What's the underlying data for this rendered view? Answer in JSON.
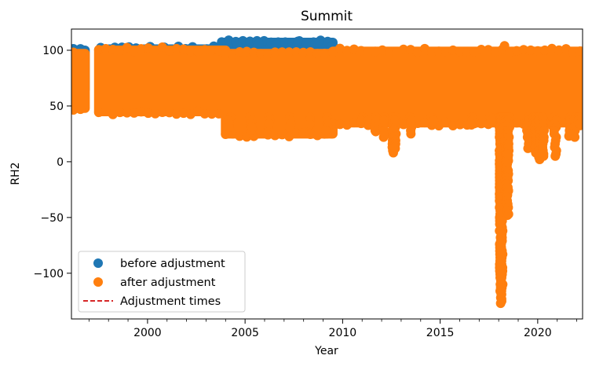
{
  "chart_data": {
    "type": "scatter",
    "title": "Summit",
    "xlabel": "Year",
    "ylabel": "RH2",
    "xlim": [
      1996.1,
      2022.3
    ],
    "ylim": [
      -141,
      119
    ],
    "xticks": [
      2000,
      2005,
      2010,
      2015,
      2020
    ],
    "xtick_labels": [
      "2000",
      "2005",
      "2010",
      "2015",
      "2020"
    ],
    "yticks": [
      100,
      50,
      0,
      -50,
      -100
    ],
    "ytick_labels": [
      "100",
      "50",
      "0",
      "−50",
      "−100"
    ],
    "grid": false,
    "legend_position": "lower-left",
    "legend": [
      {
        "label": "before adjustment",
        "marker": "circle",
        "color": "#1f77b4"
      },
      {
        "label": "after adjustment",
        "marker": "circle",
        "color": "#ff7f0e"
      },
      {
        "label": "Adjustment times",
        "marker": "dashed-line",
        "color": "#d62728"
      }
    ],
    "series": [
      {
        "name": "before adjustment",
        "color": "#1f77b4",
        "bands": [
          {
            "x": [
              1996.2,
              1996.8
            ],
            "y": [
              65,
              100
            ]
          },
          {
            "x": [
              1997.6,
              2003.8
            ],
            "y": [
              88,
              101
            ]
          },
          {
            "x": [
              2003.8,
              2009.5
            ],
            "y": [
              90,
              107
            ]
          }
        ],
        "points": [
          {
            "x": 2004.6,
            "y": 104
          },
          {
            "x": 2005.7,
            "y": 106
          },
          {
            "x": 2006.6,
            "y": 105
          },
          {
            "x": 2007.7,
            "y": 108
          },
          {
            "x": 2008.6,
            "y": 106
          },
          {
            "x": 2009.4,
            "y": 103
          }
        ]
      },
      {
        "name": "after adjustment",
        "color": "#ff7f0e",
        "bands": [
          {
            "x": [
              1996.2,
              1996.8
            ],
            "y": [
              48,
              97
            ]
          },
          {
            "x": [
              1997.5,
              2004.0
            ],
            "y": [
              45,
              100
            ]
          },
          {
            "x": [
              2004.0,
              2009.5
            ],
            "y": [
              25,
              97
            ]
          },
          {
            "x": [
              2009.5,
              2022.3
            ],
            "y": [
              35,
              99
            ]
          }
        ],
        "points": [
          {
            "x": 2004.2,
            "y": 30
          },
          {
            "x": 2005.3,
            "y": 28
          },
          {
            "x": 2006.2,
            "y": 32
          },
          {
            "x": 2007.3,
            "y": 30
          },
          {
            "x": 2008.3,
            "y": 33
          },
          {
            "x": 2009.2,
            "y": 25
          },
          {
            "x": 2011.0,
            "y": 35
          },
          {
            "x": 2011.3,
            "y": 33
          },
          {
            "x": 2011.7,
            "y": 27
          },
          {
            "x": 2012.1,
            "y": 22
          },
          {
            "x": 2012.6,
            "y": 15
          },
          {
            "x": 2012.6,
            "y": 8
          },
          {
            "x": 2012.7,
            "y": 12
          },
          {
            "x": 2013.5,
            "y": 25
          },
          {
            "x": 2014.6,
            "y": 35
          },
          {
            "x": 2016.6,
            "y": 33
          },
          {
            "x": 2017.6,
            "y": 35
          },
          {
            "x": 2018.1,
            "y": -5
          },
          {
            "x": 2018.1,
            "y": -15
          },
          {
            "x": 2018.1,
            "y": -25
          },
          {
            "x": 2018.1,
            "y": -35
          },
          {
            "x": 2018.1,
            "y": -45
          },
          {
            "x": 2018.1,
            "y": -55
          },
          {
            "x": 2018.15,
            "y": -65
          },
          {
            "x": 2018.1,
            "y": -94
          },
          {
            "x": 2018.1,
            "y": -113
          },
          {
            "x": 2018.15,
            "y": -123
          },
          {
            "x": 2018.1,
            "y": -127
          },
          {
            "x": 2018.35,
            "y": 0
          },
          {
            "x": 2018.4,
            "y": -10
          },
          {
            "x": 2018.4,
            "y": -20
          },
          {
            "x": 2018.45,
            "y": -30
          },
          {
            "x": 2018.4,
            "y": -40
          },
          {
            "x": 2018.45,
            "y": -48
          },
          {
            "x": 2018.3,
            "y": 16
          },
          {
            "x": 2018.5,
            "y": 6
          },
          {
            "x": 2018.3,
            "y": 104
          },
          {
            "x": 2019.5,
            "y": 12
          },
          {
            "x": 2019.8,
            "y": 15
          },
          {
            "x": 2019.9,
            "y": 8
          },
          {
            "x": 2020.1,
            "y": 2
          },
          {
            "x": 2020.3,
            "y": 5
          },
          {
            "x": 2020.9,
            "y": 5
          },
          {
            "x": 2021.6,
            "y": 23
          },
          {
            "x": 2021.9,
            "y": 22
          },
          {
            "x": 2022.1,
            "y": 33
          }
        ]
      }
    ]
  }
}
